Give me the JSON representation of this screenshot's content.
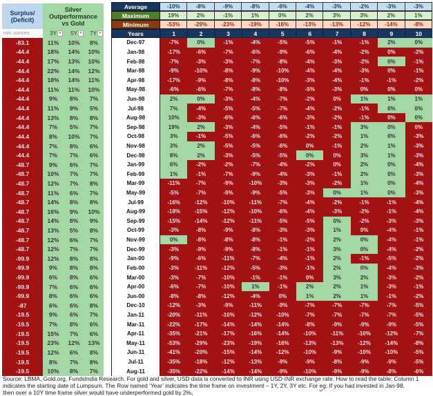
{
  "colors": {
    "negative_fill": "#a21212",
    "positive_fill": "#a3d7a4",
    "negative_text": "#f6e2e2",
    "header_blue_fill": "#bdd7ee",
    "navy": "#17375e",
    "avg_row_fill": "#c5ddf1",
    "max_label_fill": "#4e7d2a",
    "max_row_fill": "#d8efd0",
    "max_row_text": "#2f5a1f",
    "min_label_fill": "#8a3c0e",
    "min_row_fill": "#fbd8c3",
    "min_row_text": "#9c2a10",
    "squiggle": "#ff0000"
  },
  "chart_data": [
    {
      "type": "table",
      "title_line1": "Surplus/",
      "title_line2": "(Deficit)",
      "units": "mln ounces",
      "title": "Silver Outperformance vs Gold",
      "columns": [
        "3Y",
        "5Y",
        "7Y"
      ],
      "surplus_mln_oz": [
        -83.1,
        -44.4,
        -44.4,
        -44.4,
        -44.4,
        -44.4,
        -44.4,
        -44.4,
        -44.4,
        -44.4,
        -44.4,
        -44.4,
        -44.4,
        -48.7,
        -48.7,
        -48.7,
        -48.7,
        -48.7,
        -48.7,
        -48.7,
        -48.7,
        -48.7,
        -48.7,
        -99.9,
        -99.9,
        -99.9,
        -99.9,
        -99.9,
        -87,
        -19.5,
        -19.5,
        -19.5,
        -19.5,
        -19.5,
        -19.5,
        -19.5
      ],
      "outperformance_pct": [
        [
          11,
          10,
          8
        ],
        [
          18,
          14,
          10
        ],
        [
          17,
          13,
          10
        ],
        [
          22,
          14,
          12
        ],
        [
          18,
          14,
          11
        ],
        [
          11,
          11,
          10
        ],
        [
          9,
          8,
          7
        ],
        [
          11,
          9,
          5
        ],
        [
          13,
          8,
          8
        ],
        [
          7,
          5,
          7
        ],
        [
          8,
          10,
          7
        ],
        [
          7,
          8,
          6
        ],
        [
          7,
          7,
          6
        ],
        [
          9,
          6,
          7
        ],
        [
          10,
          7,
          7
        ],
        [
          12,
          7,
          8
        ],
        [
          11,
          6,
          7
        ],
        [
          14,
          8,
          8
        ],
        [
          16,
          9,
          10
        ],
        [
          14,
          8,
          9
        ],
        [
          13,
          5,
          8
        ],
        [
          12,
          6,
          7
        ],
        [
          12,
          7,
          7
        ],
        [
          12,
          8,
          8
        ],
        [
          9,
          8,
          8
        ],
        [
          6,
          8,
          6
        ],
        [
          7,
          6,
          6
        ],
        [
          8,
          6,
          6
        ],
        [
          6,
          6,
          8
        ],
        [
          9,
          6,
          7
        ],
        [
          7,
          8,
          6
        ],
        [
          15,
          7,
          6
        ],
        [
          23,
          12,
          13
        ],
        [
          12,
          6,
          8
        ],
        [
          8,
          7,
          8
        ],
        [
          10,
          8,
          7
        ]
      ]
    },
    {
      "type": "heatmap",
      "years_label": "Years",
      "years": [
        1,
        2,
        3,
        4,
        5,
        6,
        7,
        8,
        9,
        10
      ],
      "summary": [
        {
          "label": "Average",
          "values": [
            -10,
            -8,
            -9,
            -8,
            -6,
            -4,
            -3,
            -2,
            -3,
            -3
          ]
        },
        {
          "label": "Maximum",
          "values": [
            19,
            2,
            -1,
            1,
            0,
            2,
            3,
            3,
            2,
            1
          ]
        },
        {
          "label": "Minimum",
          "values": [
            -53,
            -29,
            -23,
            -19,
            -16,
            -13,
            -13,
            -12,
            -14,
            -8
          ]
        }
      ],
      "months": [
        "Dec-97",
        "Jan-98",
        "Feb-98",
        "Mar-98",
        "Apr-98",
        "May-98",
        "Jun-98",
        "Jul-98",
        "Aug-98",
        "Sep-98",
        "Oct-98",
        "Nov-98",
        "Dec-98",
        "Jan-99",
        "Feb-99",
        "Mar-99",
        "May-99",
        "Jul-99",
        "Aug-99",
        "Sep-99",
        "Oct-99",
        "Nov-99",
        "Dec-99",
        "Jan-00",
        "Feb-00",
        "Mar-00",
        "Apr-00",
        "Jun-00",
        "Dec-10",
        "Jan-11",
        "Mar-11",
        "Apr-11",
        "May-11",
        "Jun-11",
        "Jul-11",
        "Aug-11"
      ],
      "values_pct": [
        [
          -7,
          0,
          -1,
          -4,
          -5,
          -5,
          -1,
          -1,
          2,
          0
        ],
        [
          -17,
          -6,
          -7,
          -6,
          -9,
          -6,
          -4,
          -2,
          0,
          -2
        ],
        [
          -7,
          -3,
          -3,
          -7,
          -8,
          -4,
          -3,
          -2,
          0,
          -1
        ],
        [
          -9,
          -10,
          -8,
          -9,
          -10,
          -4,
          -4,
          -3,
          0,
          -1
        ],
        [
          -17,
          -9,
          -8,
          -8,
          -10,
          -3,
          -4,
          -1,
          -1,
          -2
        ],
        [
          -6,
          -6,
          -7,
          -8,
          -8,
          -5,
          -3,
          0,
          0,
          0
        ],
        [
          2,
          0,
          -3,
          -4,
          -7,
          -2,
          0,
          1,
          1,
          1
        ],
        [
          7,
          -4,
          -5,
          -5,
          -7,
          -4,
          -2,
          -1,
          0,
          0
        ],
        [
          10,
          -3,
          -6,
          -6,
          -6,
          -3,
          -2,
          -1,
          0,
          0
        ],
        [
          19,
          2,
          -3,
          -4,
          -5,
          -1,
          -1,
          3,
          0,
          0
        ],
        [
          3,
          -1,
          -5,
          -6,
          -6,
          -2,
          -2,
          1,
          0,
          -3
        ],
        [
          3,
          2,
          -5,
          -5,
          -6,
          0,
          -1,
          2,
          1,
          -3
        ],
        [
          8,
          2,
          -3,
          -5,
          -5,
          0,
          0,
          3,
          1,
          -3
        ],
        [
          6,
          -2,
          -2,
          -7,
          -4,
          -2,
          0,
          2,
          0,
          -4
        ],
        [
          1,
          -1,
          -7,
          -9,
          -4,
          -3,
          -1,
          2,
          0,
          -3
        ],
        [
          -11,
          -7,
          -9,
          -10,
          -3,
          -3,
          -2,
          1,
          0,
          -4
        ],
        [
          -5,
          -7,
          -9,
          -9,
          -5,
          -3,
          0,
          1,
          0,
          -3
        ],
        [
          -16,
          -12,
          -10,
          -11,
          -7,
          -4,
          -2,
          -1,
          -1,
          -4
        ],
        [
          -18,
          -15,
          -12,
          -10,
          -6,
          -4,
          -3,
          -2,
          -1,
          -4
        ],
        [
          -15,
          -14,
          -12,
          -11,
          -5,
          -5,
          0,
          -2,
          -3,
          -3
        ],
        [
          -3,
          -8,
          -9,
          -8,
          -3,
          -3,
          1,
          0,
          -4,
          -1
        ],
        [
          0,
          -8,
          -8,
          -8,
          -1,
          -2,
          2,
          0,
          -4,
          -1
        ],
        [
          -3,
          -9,
          -9,
          -8,
          -1,
          -1,
          3,
          0,
          -4,
          -2
        ],
        [
          -9,
          -6,
          -11,
          -7,
          -4,
          -1,
          2,
          -1,
          -5,
          -2
        ],
        [
          -3,
          -11,
          -12,
          -5,
          -3,
          -1,
          2,
          0,
          -4,
          -3
        ],
        [
          -3,
          -7,
          -10,
          -1,
          -1,
          0,
          3,
          2,
          -3,
          -2
        ],
        [
          -6,
          -7,
          -10,
          1,
          -1,
          2,
          2,
          1,
          -3,
          -1
        ],
        [
          -8,
          -8,
          -12,
          -4,
          0,
          1,
          2,
          1,
          -1,
          -2
        ],
        [
          -12,
          -3,
          -9,
          -11,
          -9,
          -7,
          -7,
          -7,
          -7,
          -5
        ],
        [
          -20,
          -11,
          -10,
          -12,
          -10,
          -7,
          -7,
          -7,
          -7,
          -5
        ],
        [
          -22,
          -17,
          -14,
          -14,
          -14,
          -8,
          -9,
          -9,
          -9,
          -5
        ],
        [
          -35,
          -21,
          -17,
          -16,
          -14,
          -10,
          -11,
          -10,
          -12,
          -7
        ],
        [
          -53,
          -29,
          -23,
          -19,
          -16,
          -13,
          -13,
          -12,
          -14,
          -8
        ],
        [
          -41,
          -20,
          -15,
          -14,
          -12,
          -10,
          -9,
          -10,
          -10,
          -5
        ],
        [
          -35,
          -18,
          -12,
          -13,
          -9,
          -9,
          -8,
          -9,
          -9,
          -5
        ],
        [
          -35,
          -22,
          -14,
          -14,
          -9,
          -10,
          -9,
          -9,
          -8,
          -6
        ]
      ],
      "green_cols": [
        [
          2,
          9,
          10
        ],
        [],
        [
          9
        ],
        [],
        [],
        [],
        [
          1,
          2,
          8,
          9,
          10
        ],
        [
          1,
          9,
          10
        ],
        [
          1,
          10
        ],
        [
          1,
          2,
          8,
          9
        ],
        [
          1,
          8,
          9
        ],
        [
          1,
          2,
          8,
          9
        ],
        [
          1,
          2,
          6,
          8,
          9
        ],
        [
          1,
          8,
          9
        ],
        [
          1,
          8,
          9
        ],
        [
          8,
          9
        ],
        [
          7,
          8,
          9
        ],
        [],
        [],
        [
          7
        ],
        [
          7
        ],
        [
          1,
          7,
          8
        ],
        [
          7,
          8
        ],
        [
          7
        ],
        [
          7,
          8
        ],
        [
          7,
          8
        ],
        [
          4,
          6,
          7,
          8
        ],
        [
          6,
          7,
          8
        ],
        [],
        [],
        [],
        [],
        [],
        [],
        [],
        []
      ]
    }
  ],
  "footer": {
    "line1": "Source: LBMA, Gold.org, FundsIndia Research. For gold and silver, USD data is converted to INR using USD-INR exchange rate. How to read the table: Column 1",
    "line2_before": "indicates the starting date of Lumpsum. The Row named ‘Year’ indicates the time frame on investment  – 1Y, 2Y, 3Y etc. For ",
    "line2_misspelled": "eg",
    "line2_after": ": If you had invested in Jan-98,",
    "line3": "then over a 10Y time frame silver would have underperformed gold by 2%,"
  }
}
